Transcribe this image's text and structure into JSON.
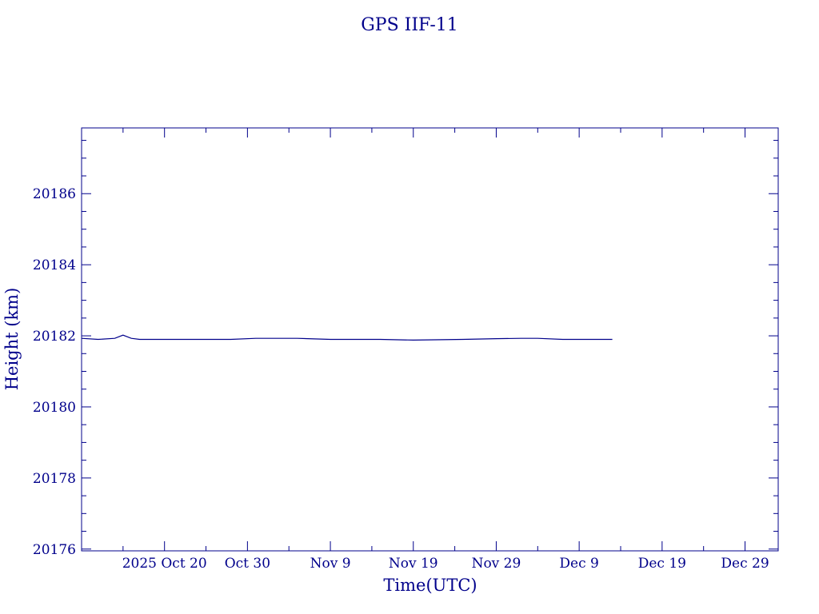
{
  "colors": {
    "foreground": "#00008b",
    "background": "#ffffff"
  },
  "chart_data": {
    "type": "line",
    "title": "GPS IIF-11",
    "xlabel": "Time(UTC)",
    "ylabel": "Height (km)",
    "x_tick_labels": [
      "2025 Oct 20",
      "Oct 30",
      "Nov  9",
      "Nov 19",
      "Nov 29",
      "Dec  9",
      "Dec 19",
      "Dec 29"
    ],
    "x_ticks": [
      "2025-10-20",
      "2025-10-30",
      "2025-11-09",
      "2025-11-19",
      "2025-11-29",
      "2025-12-09",
      "2025-12-19",
      "2025-12-29"
    ],
    "xlim": [
      "2025-10-10",
      "2026-01-02"
    ],
    "y_ticks": [
      20176,
      20178,
      20180,
      20182,
      20184,
      20186
    ],
    "ylim": [
      20175.95,
      20187.85
    ],
    "grid": false,
    "series": [
      {
        "x": [
          "2025-10-10",
          "2025-10-12",
          "2025-10-14",
          "2025-10-15",
          "2025-10-16",
          "2025-10-17",
          "2025-10-18",
          "2025-10-23",
          "2025-10-26",
          "2025-10-28",
          "2025-10-31",
          "2025-11-05",
          "2025-11-09",
          "2025-11-13",
          "2025-11-15",
          "2025-11-19",
          "2025-11-25",
          "2025-11-29",
          "2025-12-02",
          "2025-12-04",
          "2025-12-07",
          "2025-12-09",
          "2025-12-13"
        ],
        "y": [
          20181.93,
          20181.9,
          20181.93,
          20182.02,
          20181.93,
          20181.9,
          20181.9,
          20181.9,
          20181.9,
          20181.9,
          20181.93,
          20181.93,
          20181.9,
          20181.9,
          20181.9,
          20181.88,
          20181.9,
          20181.92,
          20181.93,
          20181.93,
          20181.9,
          20181.9,
          20181.9
        ]
      }
    ]
  }
}
